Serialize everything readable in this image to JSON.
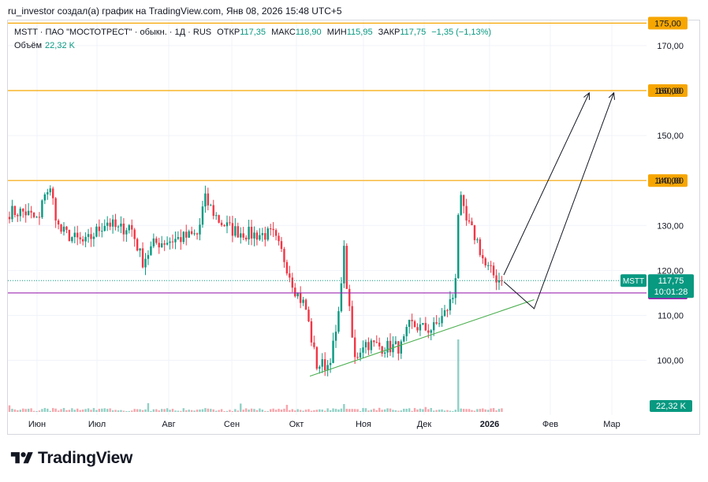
{
  "header": {
    "attribution": "ru_investor создал(а) график на TradingView.com, Янв 08, 2026 15:48 UTC+5"
  },
  "legend": {
    "symbol_line": "MSTT · ПАО \"МОСТОТРЕСТ\" · обыкн. · 1Д · RUS",
    "open_label": "ОТКР",
    "open": "117,35",
    "high_label": "МАКС",
    "high": "118,90",
    "low_label": "МИН",
    "low": "115,95",
    "close_label": "ЗАКР",
    "close": "117,75",
    "change": "−1,35 (−1,13%)",
    "volume_label": "Объём",
    "volume": "22,32 K"
  },
  "brand": {
    "name": "TradingView"
  },
  "colors": {
    "up": "#089981",
    "down": "#f23645",
    "level": "#f7a600",
    "support": "#9c27b0",
    "trend": "#4caf50"
  },
  "chart_data": {
    "type": "candlestick",
    "symbol": "MSTT",
    "y_ticks": [
      100,
      110,
      120,
      130,
      140,
      150,
      160,
      170
    ],
    "y_tick_labels": [
      "100,00",
      "110,00",
      "120,00",
      "130,00",
      "140,00",
      "150,00",
      "160,00",
      "170,00"
    ],
    "ylim": [
      94.5,
      178.5
    ],
    "x_ticks": [
      "Июн",
      "Июл",
      "Авг",
      "Сен",
      "Окт",
      "Ноя",
      "Дек",
      "2026",
      "Фев",
      "Мар"
    ],
    "horizontal_levels": [
      {
        "value": 175,
        "label": "175,00",
        "color": "#f7a600"
      },
      {
        "value": 160,
        "label": "160,00",
        "color": "#f7a600"
      },
      {
        "value": 140,
        "label": "140,00",
        "color": "#f7a600"
      },
      {
        "value": 115,
        "label": "115,00",
        "color": "#9c27b0"
      }
    ],
    "last_price": {
      "value": 117.75,
      "label": "117,75",
      "symbol": "MSTT",
      "countdown": "10:01:28"
    },
    "volume_last_label": "22,32 K",
    "trendline": {
      "from": [
        "Окт 07",
        96.5
      ],
      "to": [
        "Янв 23",
        113.5
      ]
    },
    "projection": {
      "points": [
        [
          "Янв 08",
          117.5
        ],
        [
          "Янв 23",
          111.5
        ],
        [
          "Мар 02",
          159.5
        ]
      ],
      "second_from": [
        "Янв 08",
        119.0
      ],
      "second_to": [
        "Фев 20",
        159.5
      ]
    },
    "anchors": [
      [
        "Май 25",
        133
      ],
      [
        "Июн 02",
        131
      ],
      [
        "Июн 05",
        138
      ],
      [
        "Июн 08",
        137.5
      ],
      [
        "Июн 12",
        129
      ],
      [
        "Июн 20",
        127
      ],
      [
        "Июн 25",
        126
      ],
      [
        "Июл 05",
        131
      ],
      [
        "Июл 10",
        129
      ],
      [
        "Июл 15",
        130
      ],
      [
        "Июл 20",
        122
      ],
      [
        "Июл 25",
        126
      ],
      [
        "Авг 05",
        127
      ],
      [
        "Авг 15",
        128
      ],
      [
        "Авг 18",
        136
      ],
      [
        "Авг 25",
        131
      ],
      [
        "Сен 01",
        129
      ],
      [
        "Сен 10",
        128
      ],
      [
        "Сен 20",
        128
      ],
      [
        "Сен 25",
        123
      ],
      [
        "Окт 01",
        115
      ],
      [
        "Окт 05",
        112
      ],
      [
        "Окт 08",
        104
      ],
      [
        "Окт 10",
        99
      ],
      [
        "Окт 15",
        99
      ],
      [
        "Окт 18",
        104
      ],
      [
        "Окт 20",
        110
      ],
      [
        "Окт 22",
        126
      ],
      [
        "Окт 24",
        114
      ],
      [
        "Окт 27",
        100
      ],
      [
        "Нояб 01",
        104
      ],
      [
        "Нояб 10",
        103
      ],
      [
        "Нояб 20",
        103
      ],
      [
        "Нояб 24",
        108
      ],
      [
        "Дек 01",
        107
      ],
      [
        "Дек 05",
        107
      ],
      [
        "Дек 10",
        110
      ],
      [
        "Дек 15",
        115
      ],
      [
        "Дек 17",
        137
      ],
      [
        "Дек 20",
        131
      ],
      [
        "Дек 25",
        127
      ],
      [
        "Дек 29",
        121
      ],
      [
        "Янв 05",
        118
      ],
      [
        "Янв 08",
        117.75
      ]
    ]
  }
}
